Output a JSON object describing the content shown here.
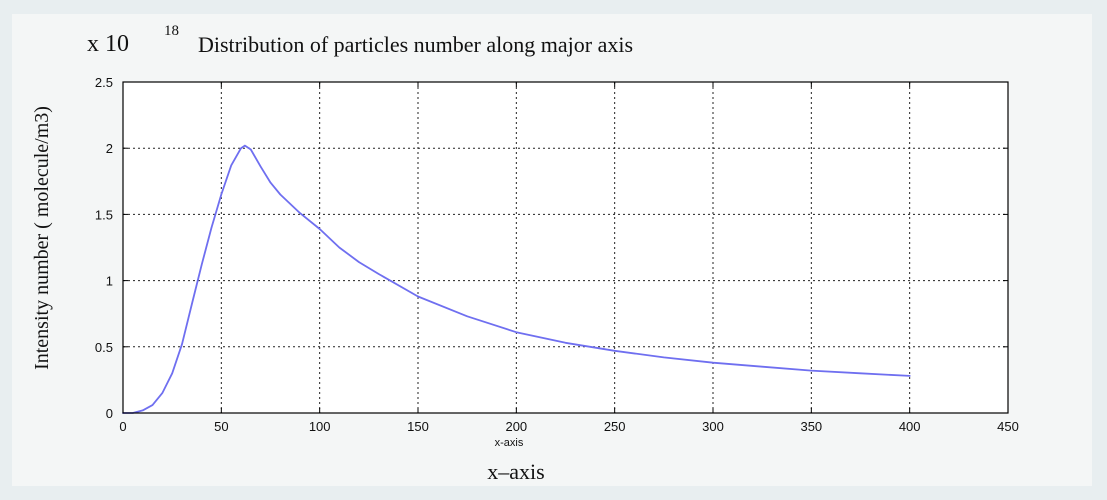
{
  "chart_data": {
    "type": "line",
    "title": "Distribution of particles number along major axis",
    "y_multiplier": "x 10",
    "y_exponent": "18",
    "ylabel": "Intensity number ( molecule/m3)",
    "xlabel_small": "x-axis",
    "xlabel": "x–axis",
    "xlim": [
      0,
      450
    ],
    "ylim": [
      0,
      2.5
    ],
    "x_ticks": [
      0,
      50,
      100,
      150,
      200,
      250,
      300,
      350,
      400,
      450
    ],
    "y_ticks": [
      0,
      0.5,
      1,
      1.5,
      2,
      2.5
    ],
    "x_tick_labels": [
      "0",
      "50",
      "100",
      "150",
      "200",
      "250",
      "300",
      "350",
      "400",
      "450"
    ],
    "y_tick_labels": [
      "0",
      "0.5",
      "1",
      "1.5",
      "2",
      "2.5"
    ],
    "grid": true,
    "line_color": "#6f6ff0",
    "series": [
      {
        "x": [
          0,
          5,
          10,
          15,
          20,
          25,
          30,
          35,
          40,
          45,
          50,
          55,
          60,
          62,
          65,
          70,
          75,
          80,
          90,
          100,
          110,
          120,
          130,
          150,
          175,
          200,
          225,
          250,
          275,
          300,
          325,
          350,
          375,
          400
        ],
        "y": [
          0,
          0,
          0.02,
          0.06,
          0.15,
          0.3,
          0.52,
          0.82,
          1.12,
          1.4,
          1.65,
          1.87,
          2.0,
          2.02,
          1.99,
          1.86,
          1.74,
          1.65,
          1.51,
          1.39,
          1.25,
          1.14,
          1.05,
          0.88,
          0.73,
          0.61,
          0.53,
          0.47,
          0.42,
          0.38,
          0.35,
          0.32,
          0.3,
          0.28
        ]
      }
    ]
  }
}
